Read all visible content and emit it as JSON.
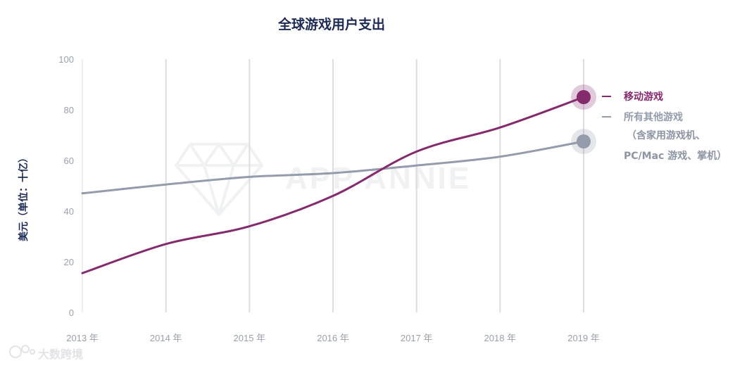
{
  "chart_data": {
    "type": "line",
    "title": "全球游戏用户支出",
    "ylabel": "美元（单位：十亿）",
    "xlabel": "",
    "ylim": [
      0,
      100
    ],
    "yticks": [
      "0",
      "20",
      "40",
      "60",
      "80",
      "100"
    ],
    "categories": [
      "2013 年",
      "2014 年",
      "2015 年",
      "2016 年",
      "2017 年",
      "2018 年",
      "2019 年"
    ],
    "grid": "vertical",
    "legend_position": "right",
    "series": [
      {
        "name": "移动游戏",
        "color": "#862a6e",
        "highlight_last": true,
        "values": [
          15.5,
          27,
          34,
          46,
          63.5,
          73,
          85
        ]
      },
      {
        "name": "所有其他游戏",
        "name_sub": [
          "（含家用游戏机、",
          "PC/Mac 游戏、掌机）"
        ],
        "color": "#949cac",
        "highlight_last": true,
        "values": [
          47,
          50.5,
          53.5,
          55,
          58,
          61.5,
          67.5
        ]
      }
    ]
  },
  "watermark": {
    "text": "APP ANNIE"
  },
  "source_badge": {
    "text": "大数跨境"
  }
}
